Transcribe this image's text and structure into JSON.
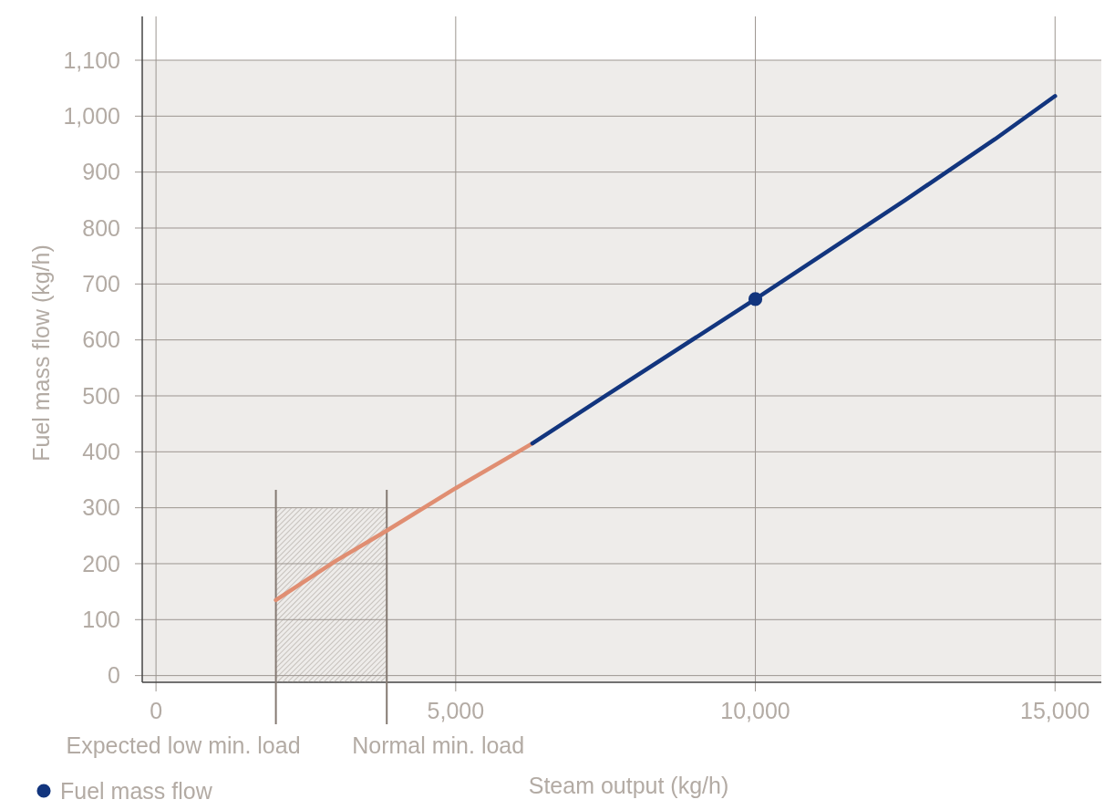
{
  "chart_data": {
    "type": "line",
    "xlabel": "Steam output (kg/h)",
    "ylabel": "Fuel mass flow (kg/h)",
    "xlim": [
      -230,
      16000
    ],
    "ylim": [
      -12,
      1100
    ],
    "xticks": [
      0,
      {
        "value": 5000,
        "label": "5,000"
      },
      {
        "value": 10000,
        "label": "10,000"
      },
      {
        "value": 15000,
        "label": "15,000"
      }
    ],
    "yticks": [
      0,
      100,
      200,
      300,
      400,
      500,
      600,
      700,
      800,
      900,
      {
        "value": 1000,
        "label": "1,000"
      },
      {
        "value": 1100,
        "label": "1,100"
      }
    ],
    "grid": true,
    "legend": "bottom left",
    "series": [
      {
        "color": "#e08e72",
        "x": [
          2000,
          3000,
          3850,
          5000,
          6280
        ],
        "values": [
          135,
          205,
          259,
          335,
          415
        ]
      },
      {
        "color": "#12357e",
        "x": [
          6280,
          7500,
          10000,
          12500,
          14000,
          15000
        ],
        "values": [
          415,
          500,
          673,
          850,
          959,
          1036
        ]
      },
      {
        "type": "scatter",
        "name": "Fuel mass flow",
        "color": "#12357e",
        "marker": "circle",
        "x": [
          10000
        ],
        "values": [
          673
        ]
      }
    ],
    "bands": [
      {
        "axis": "x",
        "from": 2000,
        "to": 3850
      }
    ],
    "ref_lines": [
      {
        "axis": "x",
        "value": 2000,
        "label": "Expected low min. load"
      },
      {
        "axis": "x",
        "value": 3850,
        "label": "Normal min. load"
      }
    ]
  }
}
